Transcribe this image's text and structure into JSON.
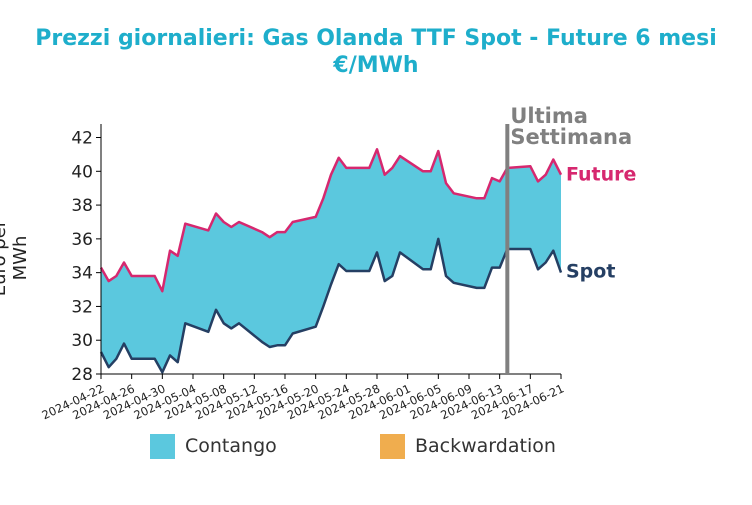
{
  "chart_data": {
    "type": "area",
    "title": "Prezzi giornalieri: Gas Olanda TTF Spot - Future 6 mesi",
    "subtitle": "€/MWh",
    "ylabel": "Euro per MWh",
    "xlabel": "",
    "ylim": [
      28,
      42.8
    ],
    "yticks": [
      28,
      30,
      32,
      34,
      36,
      38,
      40,
      42
    ],
    "xlim": [
      "2024-04-22",
      "2024-06-21"
    ],
    "xticks": [
      "2024-04-22",
      "2024-04-26",
      "2024-04-30",
      "2024-05-04",
      "2024-05-08",
      "2024-05-12",
      "2024-05-16",
      "2024-05-20",
      "2024-05-24",
      "2024-05-28",
      "2024-06-01",
      "2024-06-05",
      "2024-06-09",
      "2024-06-13",
      "2024-06-17",
      "2024-06-21"
    ],
    "grid": false,
    "legend_position": "bottom",
    "dates": [
      "2024-04-22",
      "2024-04-23",
      "2024-04-24",
      "2024-04-25",
      "2024-04-26",
      "2024-04-29",
      "2024-04-30",
      "2024-05-01",
      "2024-05-02",
      "2024-05-03",
      "2024-05-06",
      "2024-05-07",
      "2024-05-08",
      "2024-05-09",
      "2024-05-10",
      "2024-05-13",
      "2024-05-14",
      "2024-05-15",
      "2024-05-16",
      "2024-05-17",
      "2024-05-20",
      "2024-05-21",
      "2024-05-22",
      "2024-05-23",
      "2024-05-24",
      "2024-05-27",
      "2024-05-28",
      "2024-05-29",
      "2024-05-30",
      "2024-05-31",
      "2024-06-03",
      "2024-06-04",
      "2024-06-05",
      "2024-06-06",
      "2024-06-07",
      "2024-06-10",
      "2024-06-11",
      "2024-06-12",
      "2024-06-13",
      "2024-06-14",
      "2024-06-17",
      "2024-06-18",
      "2024-06-19",
      "2024-06-20",
      "2024-06-21"
    ],
    "series": [
      {
        "name": "Future",
        "color": "#d6286f",
        "values": [
          34.3,
          33.5,
          33.8,
          34.6,
          33.8,
          33.8,
          32.9,
          35.3,
          35.0,
          36.9,
          36.5,
          37.5,
          37.0,
          36.7,
          37.0,
          36.4,
          36.1,
          36.4,
          36.4,
          37.0,
          37.3,
          38.4,
          39.8,
          40.8,
          40.2,
          40.2,
          41.3,
          39.8,
          40.2,
          40.9,
          40.0,
          40.0,
          41.2,
          39.3,
          38.7,
          38.4,
          38.4,
          39.6,
          39.4,
          40.2,
          40.3,
          39.4,
          39.8,
          40.7,
          39.8
        ]
      },
      {
        "name": "Spot",
        "color": "#253f63",
        "values": [
          29.3,
          28.4,
          28.9,
          29.8,
          28.9,
          28.9,
          28.1,
          29.1,
          28.7,
          31.0,
          30.5,
          31.8,
          31.0,
          30.7,
          31.0,
          29.9,
          29.6,
          29.7,
          29.7,
          30.4,
          30.8,
          32.0,
          33.3,
          34.5,
          34.1,
          34.1,
          35.2,
          33.5,
          33.8,
          35.2,
          34.2,
          34.2,
          36.0,
          33.8,
          33.4,
          33.1,
          33.1,
          34.3,
          34.3,
          35.4,
          35.4,
          34.2,
          34.6,
          35.3,
          34.0
        ]
      }
    ],
    "fills": [
      {
        "name": "Contango",
        "color": "#5bc8de"
      },
      {
        "name": "Backwardation",
        "color": "#f0ad4e"
      }
    ],
    "annotations": [
      {
        "label_line1": "Ultima",
        "label_line2": "Settimana",
        "x": "2024-06-14",
        "color": "#808080"
      }
    ]
  }
}
